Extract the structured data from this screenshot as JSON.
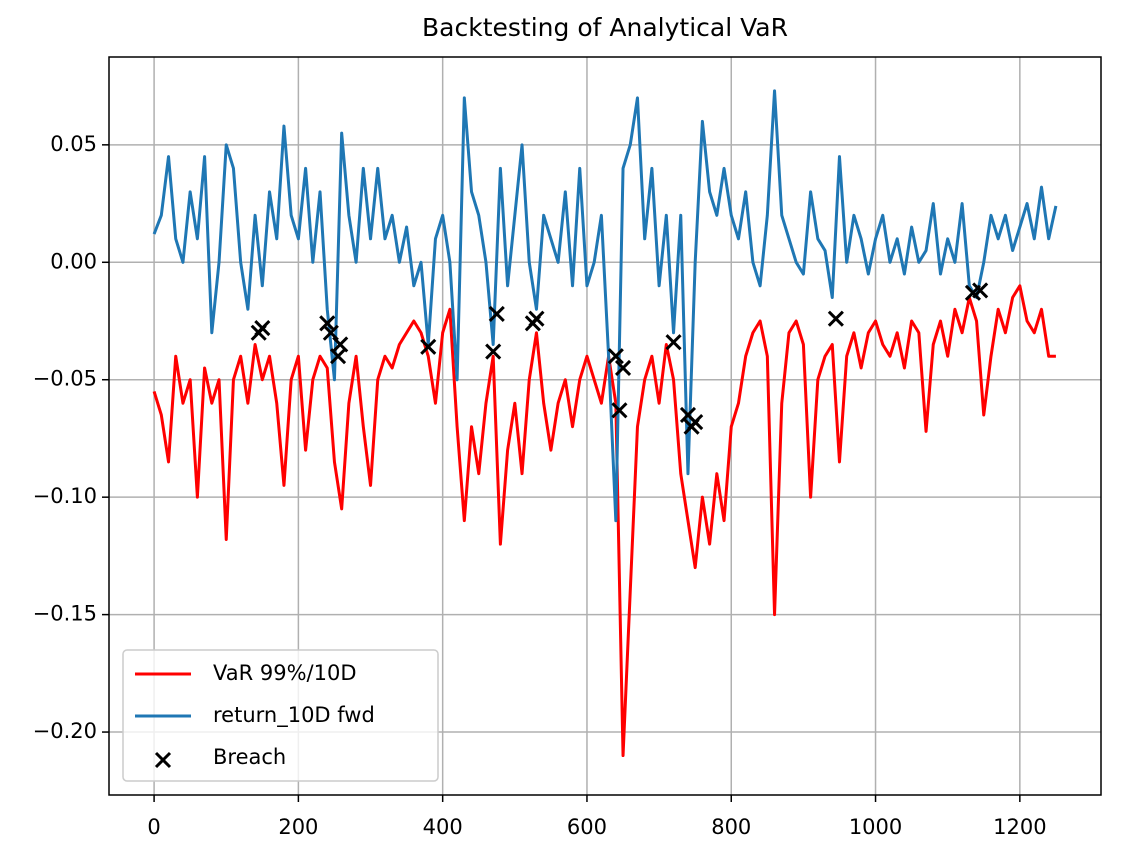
{
  "chart_data": {
    "type": "line",
    "title": "Backtesting of Analytical VaR",
    "x": [
      0,
      10,
      20,
      30,
      40,
      50,
      60,
      70,
      80,
      90,
      100,
      110,
      120,
      130,
      140,
      150,
      160,
      170,
      180,
      190,
      200,
      210,
      220,
      230,
      240,
      250,
      260,
      270,
      280,
      290,
      300,
      310,
      320,
      330,
      340,
      350,
      360,
      370,
      380,
      390,
      400,
      410,
      420,
      430,
      440,
      450,
      460,
      470,
      480,
      490,
      500,
      510,
      520,
      530,
      540,
      550,
      560,
      570,
      580,
      590,
      600,
      610,
      620,
      630,
      640,
      650,
      660,
      670,
      680,
      690,
      700,
      710,
      720,
      730,
      740,
      750,
      760,
      770,
      780,
      790,
      800,
      810,
      820,
      830,
      840,
      850,
      860,
      870,
      880,
      890,
      900,
      910,
      920,
      930,
      940,
      950,
      960,
      970,
      980,
      990,
      1000,
      1010,
      1020,
      1030,
      1040,
      1050,
      1060,
      1070,
      1080,
      1090,
      1100,
      1110,
      1120,
      1130,
      1140,
      1150,
      1160,
      1170,
      1180,
      1190,
      1200,
      1210,
      1220,
      1230,
      1240,
      1250
    ],
    "series": [
      {
        "name": "VaR 99%/10D",
        "color": "#ff0000",
        "values": [
          -0.055,
          -0.065,
          -0.085,
          -0.04,
          -0.06,
          -0.05,
          -0.1,
          -0.045,
          -0.06,
          -0.05,
          -0.118,
          -0.05,
          -0.04,
          -0.06,
          -0.035,
          -0.05,
          -0.04,
          -0.06,
          -0.095,
          -0.05,
          -0.04,
          -0.08,
          -0.05,
          -0.04,
          -0.045,
          -0.085,
          -0.105,
          -0.06,
          -0.04,
          -0.07,
          -0.095,
          -0.05,
          -0.04,
          -0.045,
          -0.035,
          -0.03,
          -0.025,
          -0.03,
          -0.04,
          -0.06,
          -0.03,
          -0.02,
          -0.07,
          -0.11,
          -0.07,
          -0.09,
          -0.06,
          -0.04,
          -0.12,
          -0.08,
          -0.06,
          -0.09,
          -0.05,
          -0.03,
          -0.06,
          -0.08,
          -0.06,
          -0.05,
          -0.07,
          -0.05,
          -0.04,
          -0.05,
          -0.06,
          -0.04,
          -0.06,
          -0.21,
          -0.14,
          -0.07,
          -0.05,
          -0.04,
          -0.06,
          -0.035,
          -0.05,
          -0.09,
          -0.11,
          -0.13,
          -0.1,
          -0.12,
          -0.09,
          -0.11,
          -0.07,
          -0.06,
          -0.04,
          -0.03,
          -0.025,
          -0.04,
          -0.15,
          -0.06,
          -0.03,
          -0.025,
          -0.035,
          -0.1,
          -0.05,
          -0.04,
          -0.035,
          -0.085,
          -0.04,
          -0.03,
          -0.045,
          -0.03,
          -0.025,
          -0.035,
          -0.04,
          -0.03,
          -0.045,
          -0.025,
          -0.03,
          -0.072,
          -0.035,
          -0.025,
          -0.04,
          -0.02,
          -0.03,
          -0.015,
          -0.025,
          -0.065,
          -0.04,
          -0.02,
          -0.03,
          -0.015,
          -0.01,
          -0.025,
          -0.03,
          -0.02,
          -0.04,
          -0.04
        ]
      },
      {
        "name": "return_10D fwd",
        "color": "#1f77b4",
        "values": [
          0.012,
          0.02,
          0.045,
          0.01,
          0.0,
          0.03,
          0.01,
          0.045,
          -0.03,
          0.0,
          0.05,
          0.04,
          0.0,
          -0.02,
          0.02,
          -0.01,
          0.03,
          0.01,
          0.058,
          0.02,
          0.01,
          0.04,
          0.0,
          0.03,
          -0.02,
          -0.05,
          0.055,
          0.02,
          0.0,
          0.04,
          0.01,
          0.04,
          0.01,
          0.02,
          0.0,
          0.015,
          -0.01,
          0.0,
          -0.035,
          0.01,
          0.02,
          0.0,
          -0.05,
          0.07,
          0.03,
          0.02,
          0.0,
          -0.035,
          0.04,
          -0.01,
          0.02,
          0.05,
          0.0,
          -0.02,
          0.02,
          0.01,
          0.0,
          0.03,
          -0.01,
          0.04,
          -0.01,
          0.0,
          0.02,
          -0.04,
          -0.11,
          0.04,
          0.05,
          0.07,
          0.01,
          0.04,
          -0.01,
          0.02,
          -0.03,
          0.02,
          -0.09,
          0.0,
          0.06,
          0.03,
          0.02,
          0.04,
          0.02,
          0.01,
          0.03,
          0.0,
          -0.01,
          0.02,
          0.073,
          0.02,
          0.01,
          0.0,
          -0.005,
          0.03,
          0.01,
          0.005,
          -0.015,
          0.045,
          0.0,
          0.02,
          0.01,
          -0.005,
          0.01,
          0.02,
          0.0,
          0.01,
          -0.005,
          0.015,
          0.0,
          0.005,
          0.025,
          -0.005,
          0.01,
          0.0,
          0.025,
          -0.01,
          -0.015,
          0.0,
          0.02,
          0.01,
          0.02,
          0.005,
          0.015,
          0.025,
          0.01,
          0.032,
          0.01,
          0.024
        ]
      },
      {
        "name": "Breach",
        "color": "#000000",
        "marker": "x",
        "x": [
          145,
          150,
          240,
          245,
          255,
          258,
          380,
          470,
          475,
          525,
          530,
          640,
          645,
          650,
          720,
          740,
          745,
          750,
          945,
          1135,
          1145
        ],
        "values": [
          -0.03,
          -0.028,
          -0.026,
          -0.03,
          -0.04,
          -0.035,
          -0.036,
          -0.038,
          -0.022,
          -0.026,
          -0.024,
          -0.04,
          -0.063,
          -0.045,
          -0.034,
          -0.065,
          -0.07,
          -0.068,
          -0.024,
          -0.013,
          -0.012
        ]
      }
    ],
    "xlim": [
      -62.5,
      1312.5
    ],
    "xticks": [
      0,
      200,
      400,
      600,
      800,
      1000,
      1200
    ],
    "ylim": [
      -0.2268,
      0.0874
    ],
    "yticks": [
      {
        "value": -0.2,
        "label": "−0.20"
      },
      {
        "value": -0.15,
        "label": "−0.15"
      },
      {
        "value": -0.1,
        "label": "−0.10"
      },
      {
        "value": -0.05,
        "label": "−0.05"
      },
      {
        "value": 0,
        "label": "0.00"
      },
      0.05
    ],
    "grid": true,
    "legend": "lower left"
  }
}
